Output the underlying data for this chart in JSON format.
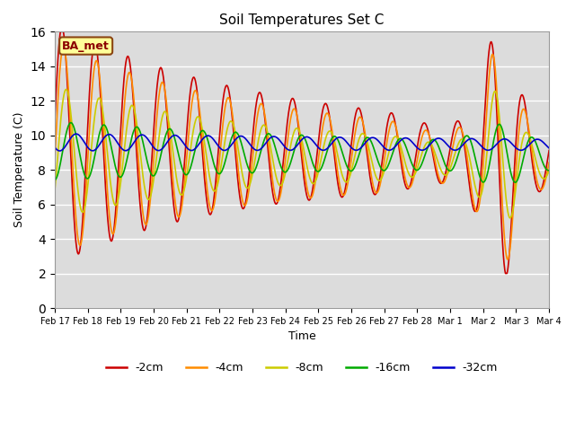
{
  "title": "Soil Temperatures Set C",
  "xlabel": "Time",
  "ylabel": "Soil Temperature (C)",
  "ylim": [
    0,
    16
  ],
  "yticks": [
    0,
    2,
    4,
    6,
    8,
    10,
    12,
    14,
    16
  ],
  "background_color": "#dcdcdc",
  "annotation_text": "BA_met",
  "annotation_bg": "#ffff99",
  "annotation_border": "#8B4513",
  "annotation_text_color": "#8B0000",
  "colors": {
    "-2cm": "#cc0000",
    "-4cm": "#ff8c00",
    "-8cm": "#cccc00",
    "-16cm": "#00aa00",
    "-32cm": "#0000cc"
  },
  "linewidth": 1.2,
  "xtick_labels": [
    "Feb 17",
    "Feb 18",
    "Feb 19",
    "Feb 20",
    "Feb 21",
    "Feb 22",
    "Feb 23",
    "Feb 24",
    "Feb 25",
    "Feb 26",
    "Feb 27",
    "Feb 28",
    "Mar 1",
    "Mar 2",
    "Mar 3",
    "Mar 4"
  ]
}
